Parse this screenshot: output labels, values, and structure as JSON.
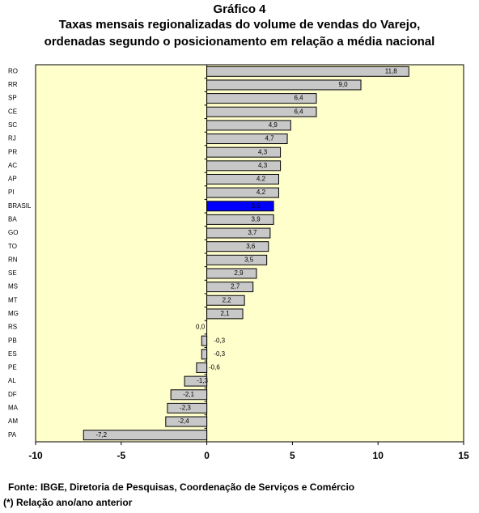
{
  "chart_data": {
    "type": "hbar",
    "title": "Gráfico 4",
    "subtitle": [
      "Taxas mensais regionalizadas  do volume de vendas do Varejo,",
      "ordenadas segundo o posicionamento em relação a média nacional"
    ],
    "categories": [
      "RO",
      "RR",
      "SP",
      "CE",
      "SC",
      "RJ",
      "PR",
      "AC",
      "AP",
      "PI",
      "BRASIL",
      "BA",
      "GO",
      "TO",
      "RN",
      "SE",
      "MS",
      "MT",
      "MG",
      "RS",
      "PB",
      "ES",
      "PE",
      "AL",
      "DF",
      "MA",
      "AM",
      "PA"
    ],
    "values": [
      11.8,
      9.0,
      6.4,
      6.4,
      4.9,
      4.7,
      4.3,
      4.3,
      4.2,
      4.2,
      3.9,
      3.9,
      3.7,
      3.6,
      3.5,
      2.9,
      2.7,
      2.2,
      2.1,
      0.0,
      -0.3,
      -0.3,
      -0.6,
      -1.3,
      -2.1,
      -2.3,
      -2.4,
      -7.2
    ],
    "value_labels": [
      "11,8",
      "9,0",
      "6,4",
      "6,4",
      "4,9",
      "4,7",
      "4,3",
      "4,3",
      "4,2",
      "4,2",
      "3,9",
      "3,9",
      "3,7",
      "3,6",
      "3,5",
      "2,9",
      "2,7",
      "2,2",
      "2,1",
      "0,0",
      "-0,3",
      "-0,3",
      "-0,6",
      "-1,3",
      "-2,1",
      "-2,3",
      "-2,4",
      "-7,2"
    ],
    "colors": [
      "#c8c8c8",
      "#c8c8c8",
      "#c8c8c8",
      "#c8c8c8",
      "#c8c8c8",
      "#c8c8c8",
      "#c8c8c8",
      "#c8c8c8",
      "#c8c8c8",
      "#c8c8c8",
      "#0000ff",
      "#c8c8c8",
      "#c8c8c8",
      "#c8c8c8",
      "#c8c8c8",
      "#c8c8c8",
      "#c8c8c8",
      "#c8c8c8",
      "#c8c8c8",
      "#c8c8c8",
      "#c8c8c8",
      "#c8c8c8",
      "#c8c8c8",
      "#c8c8c8",
      "#c8c8c8",
      "#c8c8c8",
      "#c8c8c8",
      "#c8c8c8"
    ],
    "xlim": [
      -10,
      15
    ],
    "xticks": [
      -10,
      -5,
      0,
      5,
      10,
      15
    ],
    "plot_background": "#ffffcc",
    "footnotes": [
      "Fonte: IBGE, Diretoria de Pesquisas, Coordenação de Serviços e Comércio",
      "(*) Relação ano/ano anterior"
    ]
  }
}
